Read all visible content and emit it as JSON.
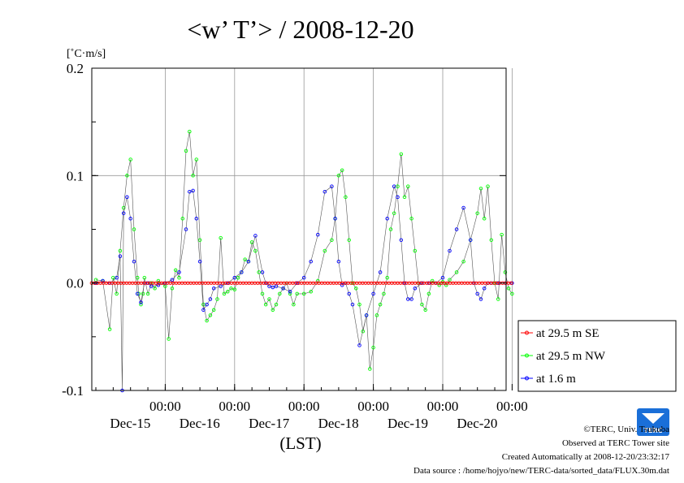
{
  "chart_data": {
    "type": "line",
    "title": "<w’ T’> / 2008-12-20",
    "ylabel": "[˚C·m/s]",
    "xlabel": "(LST)",
    "ylim": [
      -0.1,
      0.2
    ],
    "yticks": [
      {
        "value": 0.2,
        "label": "0.2"
      },
      {
        "value": 0.1,
        "label": "0.1"
      },
      {
        "value": 0.0,
        "label": "0.0"
      },
      {
        "value": -0.1,
        "label": "-0.1"
      }
    ],
    "xlim": [
      0,
      6
    ],
    "xticks": [
      {
        "value": 1,
        "time": "00:00",
        "date": "Dec-15"
      },
      {
        "value": 2,
        "time": "00:00",
        "date": "Dec-16"
      },
      {
        "value": 3,
        "time": "00:00",
        "date": "Dec-17"
      },
      {
        "value": 4,
        "time": "00:00",
        "date": "Dec-18"
      },
      {
        "value": 5,
        "time": "00:00",
        "date": "Dec-19"
      },
      {
        "value": 6,
        "time": "00:00",
        "date": "Dec-20"
      }
    ],
    "grid": true,
    "legend_position": "right",
    "series": [
      {
        "name": "at 29.5 m SE",
        "color": "#ff0000",
        "x": [
          0.0,
          6.0
        ],
        "y": [
          0.0,
          0.0
        ]
      },
      {
        "name": "at 29.5 m NW",
        "color": "#00ff00",
        "x": [
          0.0,
          0.1,
          0.2,
          0.25,
          0.3,
          0.35,
          0.4,
          0.45,
          0.5,
          0.55,
          0.6,
          0.62,
          0.65,
          0.68,
          0.7,
          0.75,
          0.8,
          0.85,
          0.9,
          1.0,
          1.05,
          1.1,
          1.15,
          1.2,
          1.25,
          1.3,
          1.35,
          1.4,
          1.45,
          1.5,
          1.55,
          1.6,
          1.65,
          1.7,
          1.75,
          1.8,
          1.85,
          1.9,
          1.95,
          2.0,
          2.05,
          2.1,
          2.15,
          2.2,
          2.25,
          2.3,
          2.35,
          2.4,
          2.45,
          2.5,
          2.55,
          2.6,
          2.65,
          2.7,
          2.75,
          2.8,
          2.85,
          2.9,
          3.0,
          3.1,
          3.2,
          3.3,
          3.4,
          3.45,
          3.5,
          3.55,
          3.6,
          3.65,
          3.7,
          3.75,
          3.8,
          3.85,
          3.9,
          3.95,
          4.0,
          4.05,
          4.1,
          4.15,
          4.2,
          4.25,
          4.3,
          4.35,
          4.4,
          4.45,
          4.5,
          4.55,
          4.6,
          4.65,
          4.7,
          4.75,
          4.8,
          4.85,
          4.9,
          4.95,
          5.0,
          5.05,
          5.1,
          5.2,
          5.3,
          5.4,
          5.5,
          5.55,
          5.6,
          5.65,
          5.7,
          5.75,
          5.8,
          5.85,
          5.9,
          5.95,
          6.0
        ],
        "y": [
          0.003,
          0.002,
          -0.043,
          0.005,
          -0.01,
          0.03,
          0.07,
          0.1,
          0.115,
          0.05,
          0.005,
          -0.01,
          -0.02,
          -0.01,
          0.005,
          -0.01,
          0.0,
          -0.005,
          0.002,
          -0.003,
          -0.052,
          -0.005,
          0.012,
          0.005,
          0.06,
          0.123,
          0.141,
          0.1,
          0.115,
          0.04,
          -0.02,
          -0.035,
          -0.03,
          -0.025,
          -0.015,
          0.042,
          -0.01,
          -0.008,
          -0.005,
          -0.006,
          0.005,
          0.01,
          0.022,
          0.02,
          0.038,
          0.03,
          0.01,
          -0.01,
          -0.02,
          -0.015,
          -0.025,
          -0.02,
          -0.01,
          -0.005,
          0.0,
          -0.01,
          -0.02,
          -0.01,
          -0.01,
          -0.008,
          0.002,
          0.03,
          0.04,
          0.06,
          0.1,
          0.105,
          0.08,
          0.04,
          0.0,
          -0.005,
          -0.02,
          -0.045,
          -0.03,
          -0.08,
          -0.06,
          -0.03,
          -0.02,
          -0.01,
          0.005,
          0.05,
          0.065,
          0.09,
          0.12,
          0.08,
          0.09,
          0.06,
          0.03,
          0.0,
          -0.02,
          -0.025,
          -0.01,
          0.002,
          0.0,
          -0.002,
          0.001,
          -0.002,
          0.003,
          0.01,
          0.02,
          0.04,
          0.065,
          0.088,
          0.06,
          0.09,
          0.04,
          0.0,
          -0.015,
          0.045,
          0.01,
          -0.005,
          -0.01
        ]
      },
      {
        "name": "at 1.6 m",
        "color": "#0000ff",
        "x": [
          0.0,
          0.1,
          0.2,
          0.3,
          0.35,
          0.38,
          0.4,
          0.45,
          0.5,
          0.55,
          0.6,
          0.65,
          0.7,
          0.75,
          0.8,
          0.9,
          1.0,
          1.1,
          1.2,
          1.3,
          1.35,
          1.4,
          1.45,
          1.5,
          1.55,
          1.6,
          1.65,
          1.7,
          1.8,
          1.9,
          2.0,
          2.1,
          2.2,
          2.3,
          2.4,
          2.45,
          2.5,
          2.55,
          2.6,
          2.7,
          2.8,
          2.9,
          3.0,
          3.1,
          3.2,
          3.3,
          3.4,
          3.45,
          3.5,
          3.55,
          3.6,
          3.65,
          3.7,
          3.8,
          3.9,
          4.0,
          4.1,
          4.2,
          4.3,
          4.35,
          4.4,
          4.45,
          4.5,
          4.55,
          4.6,
          4.7,
          4.8,
          4.9,
          5.0,
          5.1,
          5.2,
          5.3,
          5.4,
          5.45,
          5.5,
          5.55,
          5.6,
          5.65,
          5.7,
          5.8,
          5.9,
          6.0
        ],
        "y": [
          0.0,
          0.002,
          0.0,
          0.005,
          0.025,
          -0.1,
          0.065,
          0.08,
          0.06,
          0.02,
          -0.01,
          -0.018,
          0.0,
          0.0,
          -0.003,
          -0.002,
          0.0,
          0.003,
          0.01,
          0.05,
          0.085,
          0.086,
          0.06,
          0.02,
          -0.025,
          -0.02,
          -0.015,
          -0.005,
          -0.003,
          0.0,
          0.005,
          0.01,
          0.02,
          0.044,
          0.01,
          0.0,
          -0.003,
          -0.004,
          -0.003,
          -0.005,
          -0.008,
          0.0,
          0.005,
          0.02,
          0.045,
          0.085,
          0.09,
          0.06,
          0.02,
          -0.002,
          0.0,
          -0.01,
          -0.02,
          -0.058,
          -0.03,
          -0.01,
          0.01,
          0.06,
          0.09,
          0.08,
          0.04,
          0.0,
          -0.015,
          -0.015,
          -0.005,
          0.0,
          0.0,
          0.0,
          0.005,
          0.03,
          0.05,
          0.07,
          0.04,
          0.0,
          -0.01,
          -0.015,
          -0.005,
          0.0,
          0.0,
          0.0,
          0.0,
          0.0
        ]
      }
    ]
  },
  "legend": {
    "items": [
      {
        "label": "at 29.5 m SE",
        "color": "#ff0000"
      },
      {
        "label": "at 29.5 m NW",
        "color": "#00ff00"
      },
      {
        "label": "at 1.6 m",
        "color": "#0000ff"
      }
    ]
  },
  "footer": {
    "copyright": "©TERC, Univ. Tsukuba",
    "observed": "Observed at TERC Tower site",
    "created": "Created Automatically at 2008-12-20/23:32:17",
    "source": "Data source : /home/hojyo/new/TERC-data/sorted_data/FLUX.30m.dat"
  },
  "logo": {
    "text": "TERC",
    "color": "#1a6fd8"
  }
}
